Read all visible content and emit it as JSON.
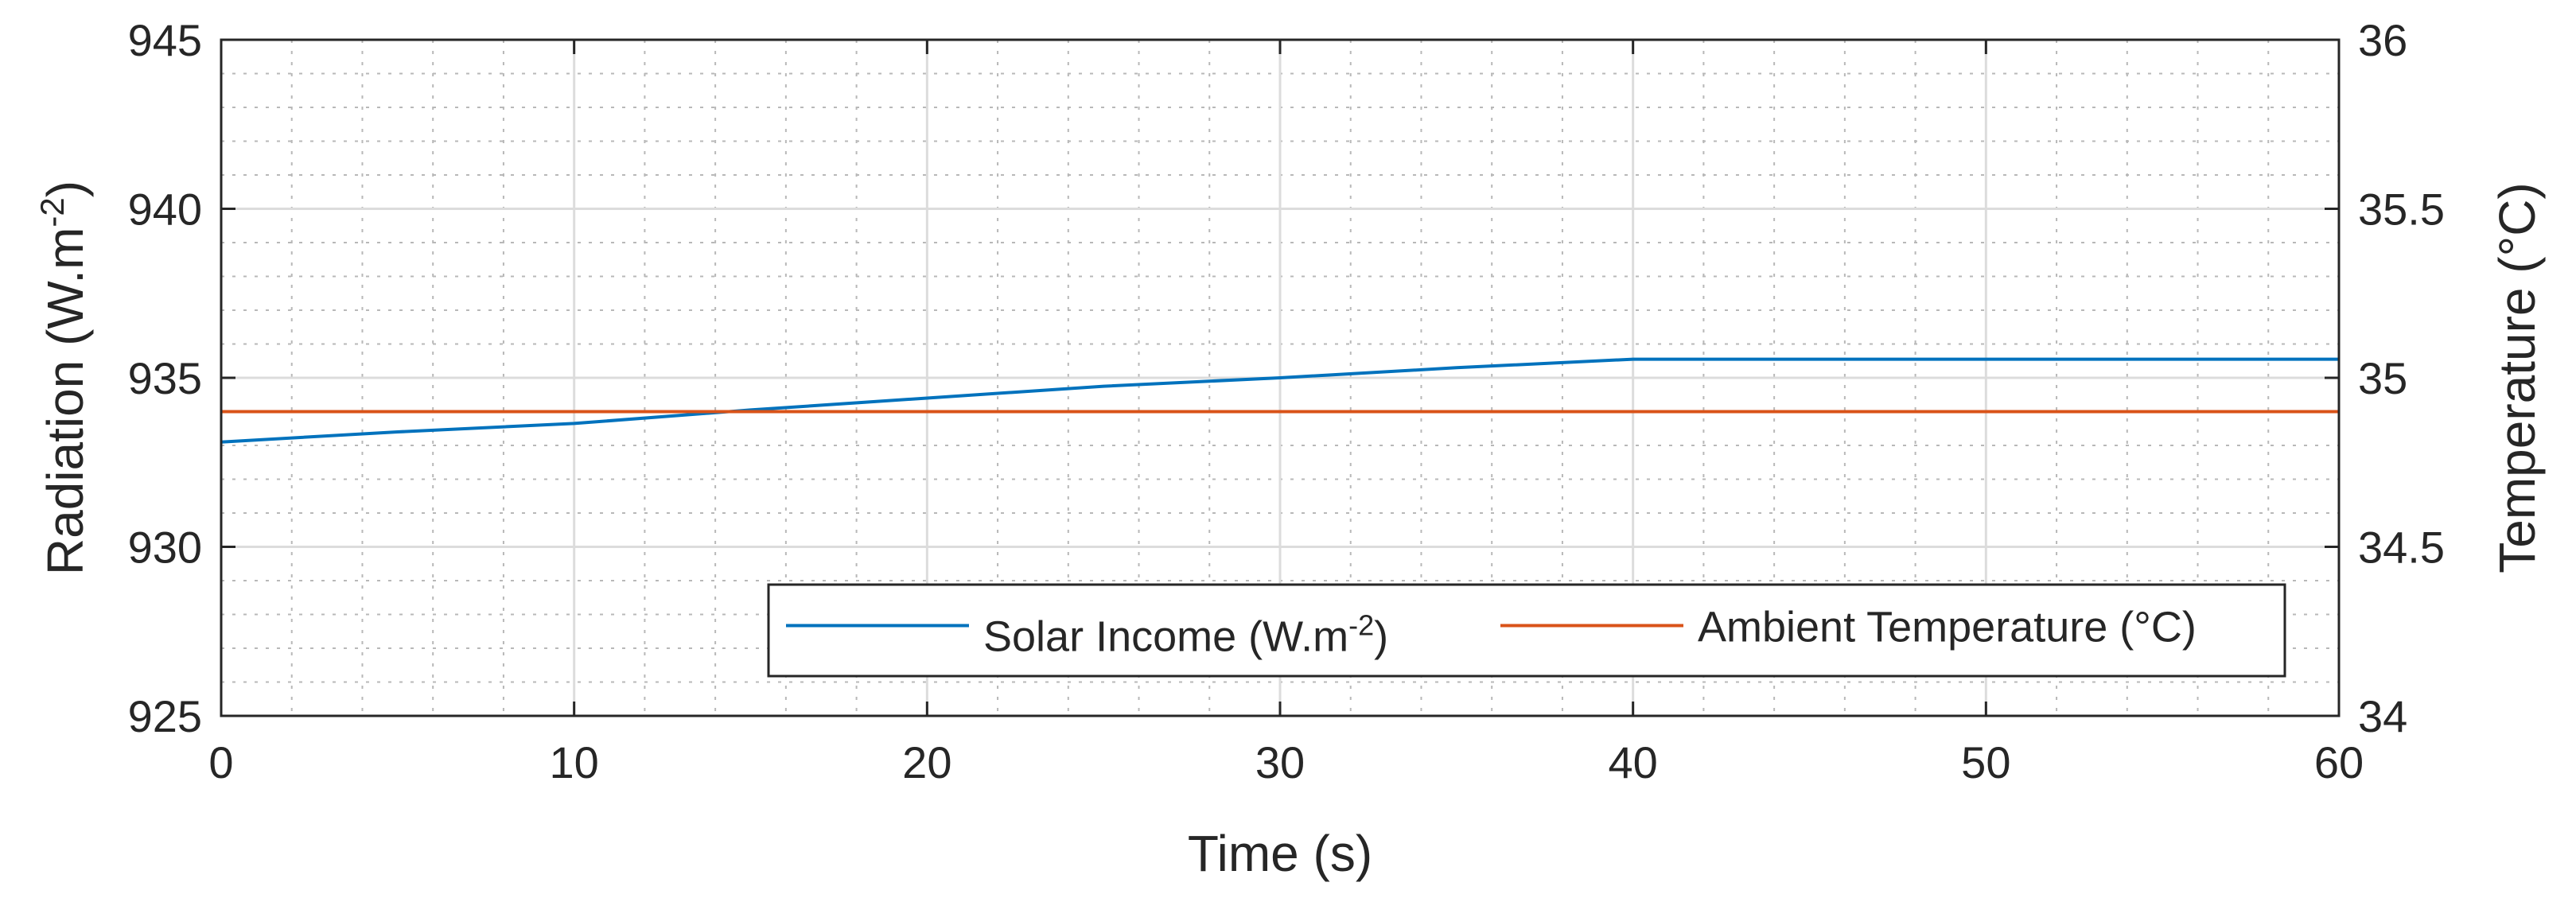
{
  "chart_data": {
    "type": "line",
    "xlabel": "Time (s)",
    "ylabel_left": {
      "text": "Radiation (W.m",
      "sup": "-2",
      "suffix": ")"
    },
    "ylabel_right": "Temperature (°C)",
    "xlim": [
      0,
      60
    ],
    "ylim_left": [
      925,
      945
    ],
    "ylim_right": [
      34,
      36
    ],
    "x_ticks": [
      0,
      10,
      20,
      30,
      40,
      50,
      60
    ],
    "x_tick_labels": [
      "0",
      "10",
      "20",
      "30",
      "40",
      "50",
      "60"
    ],
    "y_left_ticks": [
      925,
      930,
      935,
      940,
      945
    ],
    "y_left_tick_labels": [
      "925",
      "930",
      "935",
      "940",
      "945"
    ],
    "y_right_ticks": [
      34,
      34.5,
      35,
      35.5,
      36
    ],
    "y_right_tick_labels": [
      "34",
      "34.5",
      "35",
      "35.5",
      "36"
    ],
    "grid": true,
    "minor_grid": true,
    "legend_position": "bottom-right",
    "series": [
      {
        "name": "Solar Income (W.m-2)",
        "legend_label": {
          "text": "Solar Income (W.m",
          "sup": "-2",
          "suffix": ")"
        },
        "axis": "left",
        "color": "#0072BD",
        "x": [
          0,
          5,
          10,
          15,
          20,
          25,
          30,
          35,
          40,
          45,
          50,
          55,
          60
        ],
        "y": [
          933.1,
          933.4,
          933.65,
          934.05,
          934.4,
          934.75,
          935.0,
          935.3,
          935.55,
          935.55,
          935.55,
          935.55,
          935.55
        ]
      },
      {
        "name": "Ambient Temperature (°C)",
        "legend_label": {
          "text": "Ambient Temperature (°C)",
          "sup": "",
          "suffix": ""
        },
        "axis": "right",
        "color": "#D95319",
        "x": [
          0,
          60
        ],
        "y": [
          34.9,
          34.9
        ]
      }
    ]
  }
}
